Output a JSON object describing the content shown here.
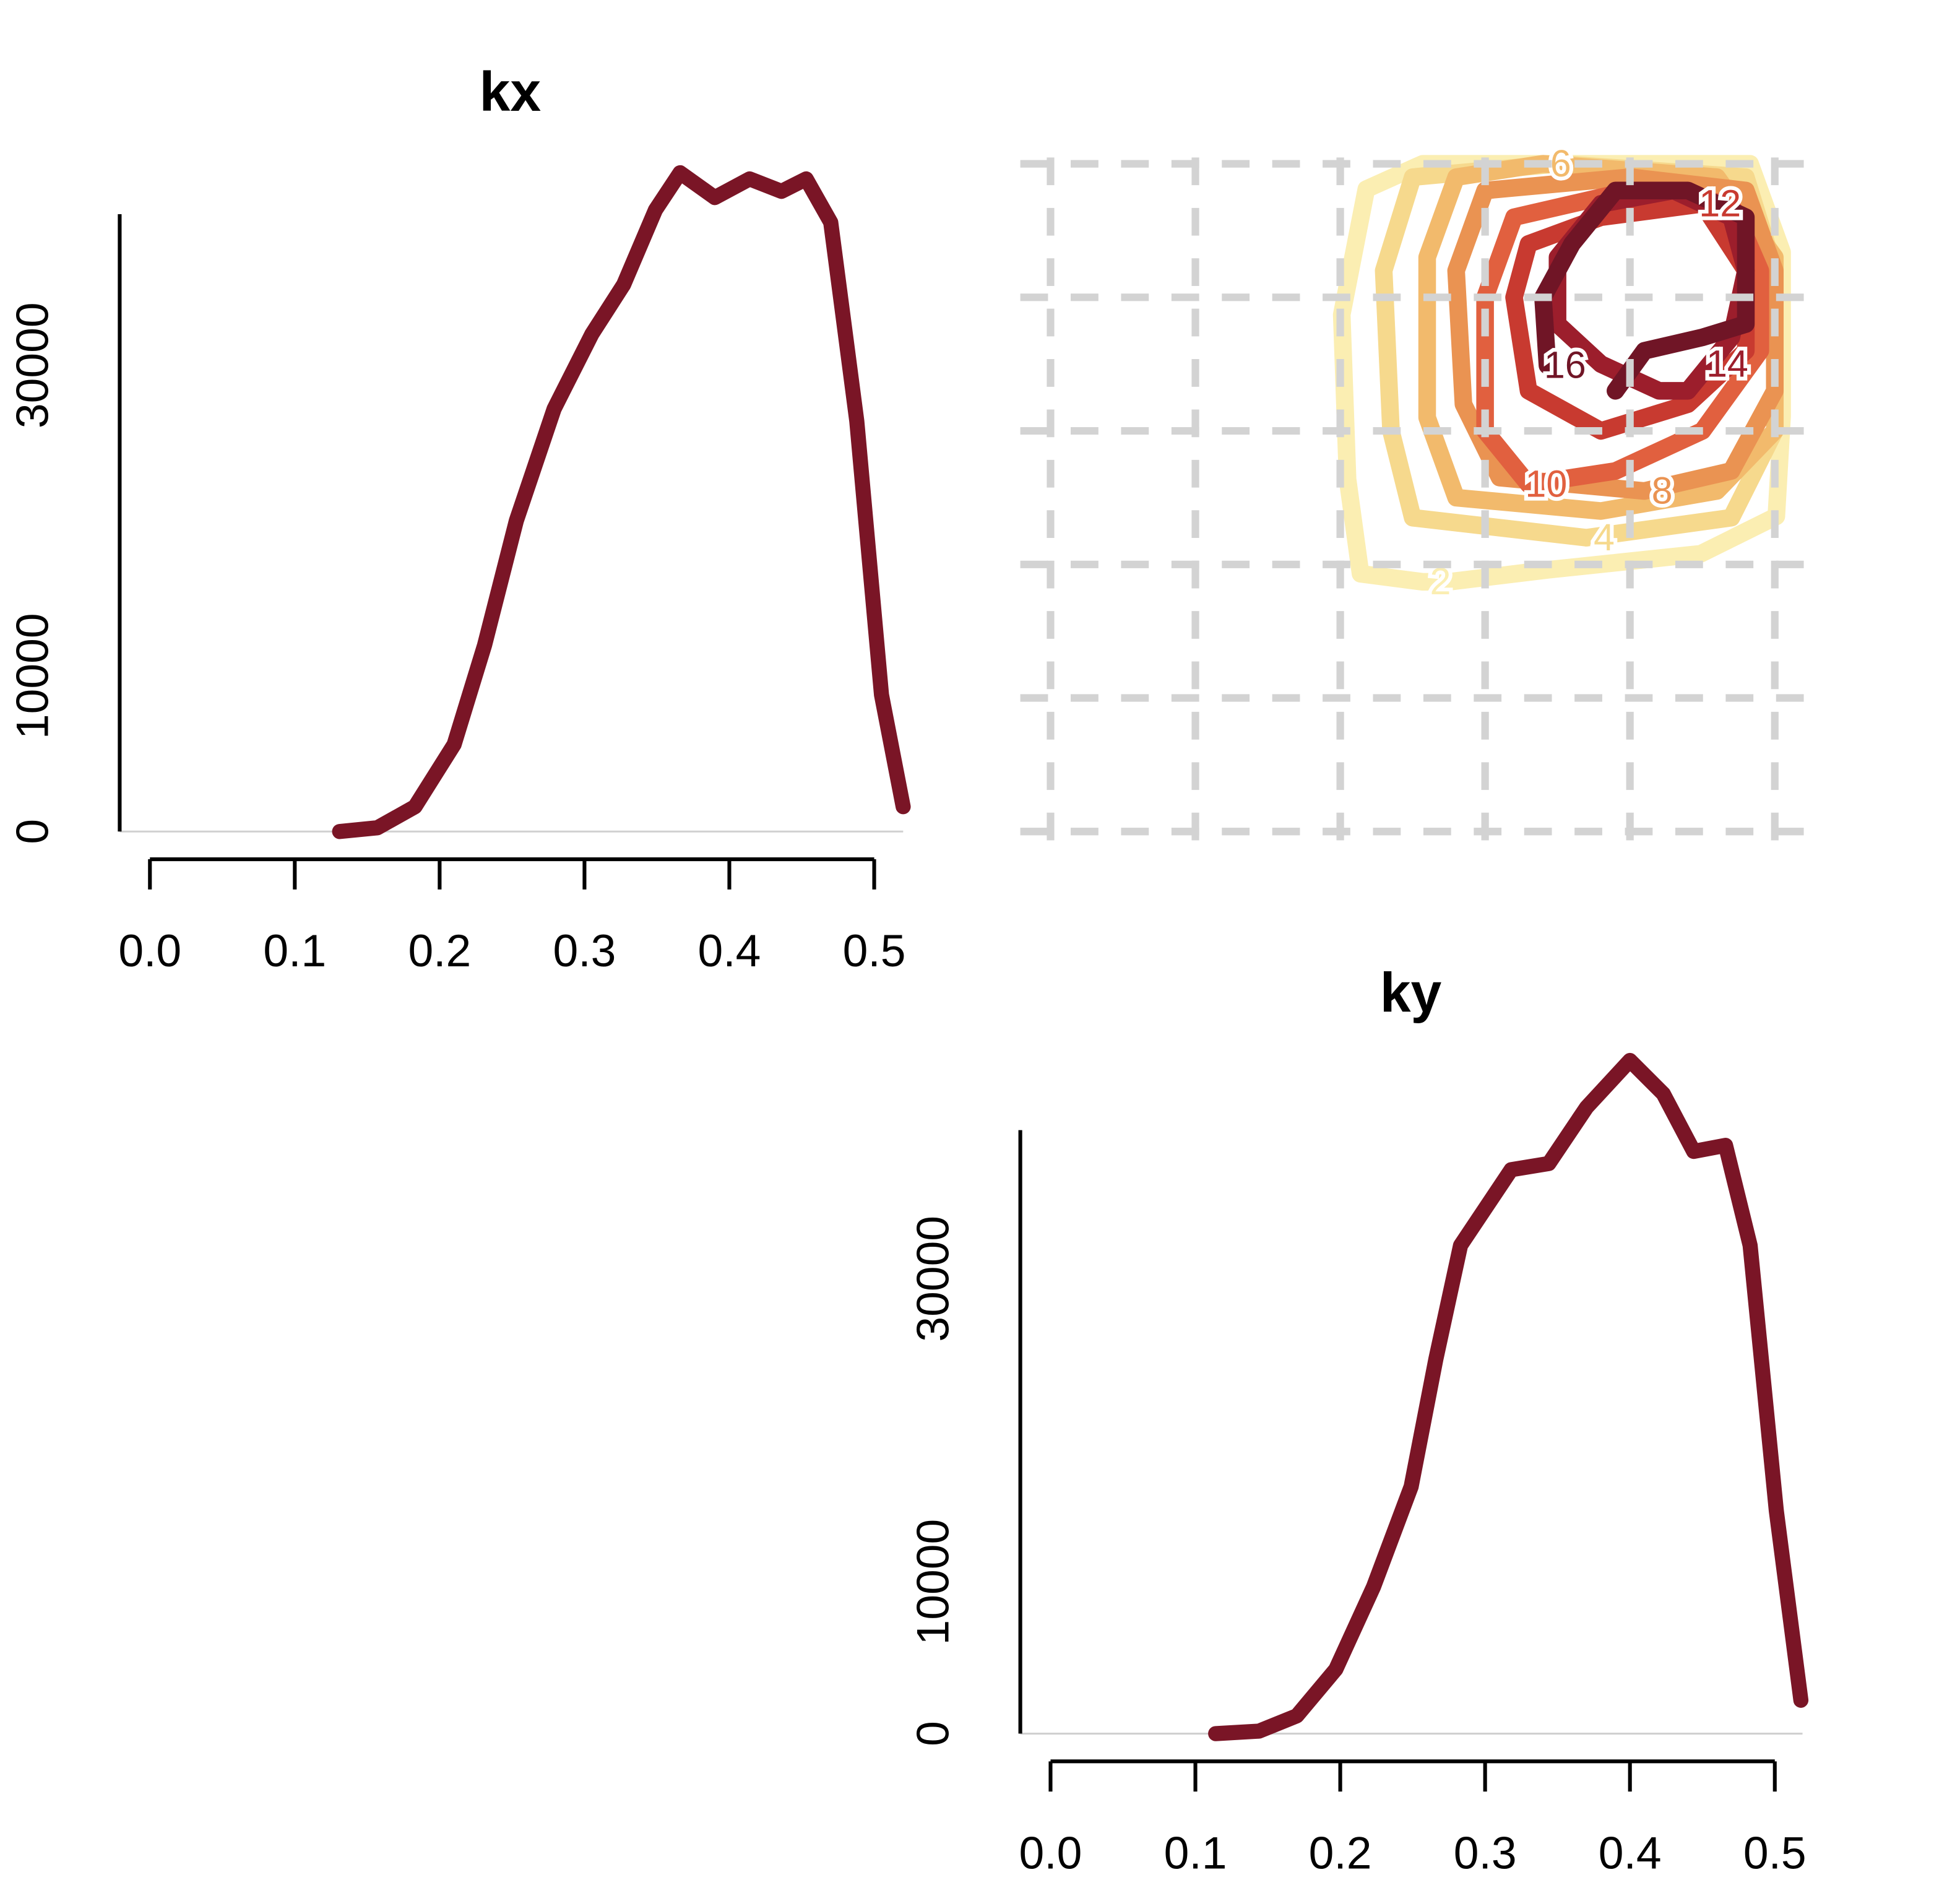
{
  "chart_data": [
    {
      "type": "line",
      "title": "kx",
      "color": "#7a1526",
      "x": [
        0.131,
        0.157,
        0.183,
        0.21,
        0.231,
        0.253,
        0.279,
        0.305,
        0.327,
        0.349,
        0.366,
        0.39,
        0.414,
        0.436,
        0.453,
        0.47,
        0.488,
        0.505,
        0.52
      ],
      "values": [
        0,
        240,
        1600,
        5600,
        12000,
        20000,
        27200,
        32000,
        35200,
        40000,
        42400,
        40800,
        42000,
        41200,
        42000,
        39200,
        26400,
        8800,
        1600
      ],
      "xlim": [
        -0.021,
        0.52
      ],
      "ylim": [
        0,
        42500
      ],
      "xticks": [
        {
          "value": 0,
          "label": "0.0"
        },
        0.1,
        0.2,
        0.3,
        0.4,
        0.5
      ],
      "yticks": [
        0,
        10000,
        30000
      ]
    },
    {
      "type": "contour",
      "xlim": [
        -0.02,
        0.52
      ],
      "ylim": [
        0,
        0.5
      ],
      "xticks": [
        0,
        0.1,
        0.2,
        0.3,
        0.4,
        0.5
      ],
      "yticks": [
        0,
        0.1,
        0.2,
        0.3,
        0.4,
        0.5
      ],
      "grid": true,
      "contours": [
        {
          "level": 2,
          "color": "#fbeeb2",
          "x": [
            0.257,
            0.214,
            0.205,
            0.201,
            0.218,
            0.257,
            0.362,
            0.483,
            0.505,
            0.505,
            0.501,
            0.449,
            0.344,
            0.275,
            0.257
          ],
          "y": [
            0.187,
            0.193,
            0.264,
            0.387,
            0.481,
            0.5,
            0.5,
            0.5,
            0.434,
            0.311,
            0.236,
            0.208,
            0.196,
            0.187,
            0.187
          ]
        },
        {
          "level": 4,
          "color": "#f6d98d",
          "x": [
            0.37,
            0.25,
            0.235,
            0.23,
            0.25,
            0.35,
            0.48,
            0.5,
            0.5,
            0.47,
            0.37
          ],
          "y": [
            0.22,
            0.235,
            0.3,
            0.42,
            0.49,
            0.5,
            0.49,
            0.42,
            0.3,
            0.235,
            0.22
          ]
        },
        {
          "level": 6,
          "color": "#f2ba6c",
          "x": [
            0.34,
            0.46,
            0.5,
            0.5,
            0.46,
            0.38,
            0.28,
            0.26,
            0.26,
            0.28,
            0.34
          ],
          "y": [
            0.5,
            0.49,
            0.43,
            0.3,
            0.255,
            0.24,
            0.25,
            0.31,
            0.43,
            0.49,
            0.5
          ]
        },
        {
          "level": 8,
          "color": "#ea9352",
          "x": [
            0.41,
            0.31,
            0.285,
            0.28,
            0.3,
            0.4,
            0.48,
            0.5,
            0.5,
            0.47,
            0.41
          ],
          "y": [
            0.255,
            0.265,
            0.32,
            0.42,
            0.48,
            0.49,
            0.48,
            0.42,
            0.33,
            0.27,
            0.255
          ]
        },
        {
          "level": 10,
          "color": "#e1603f",
          "x": [
            0.33,
            0.3,
            0.3,
            0.32,
            0.4,
            0.47,
            0.49,
            0.49,
            0.45,
            0.39,
            0.33
          ],
          "y": [
            0.26,
            0.3,
            0.4,
            0.46,
            0.48,
            0.47,
            0.42,
            0.36,
            0.3,
            0.27,
            0.26
          ]
        },
        {
          "level": 12,
          "color": "#c83a30",
          "x": [
            0.45,
            0.48,
            0.48,
            0.44,
            0.38,
            0.33,
            0.32,
            0.33,
            0.38,
            0.45
          ],
          "y": [
            0.47,
            0.42,
            0.36,
            0.32,
            0.3,
            0.33,
            0.4,
            0.44,
            0.46,
            0.47
          ]
        },
        {
          "level": 14,
          "color": "#9c1e2c",
          "x": [
            0.455,
            0.47,
            0.48,
            0.47,
            0.43,
            0.38,
            0.35,
            0.35,
            0.38,
            0.42,
            0.44,
            0.455
          ],
          "y": [
            0.35,
            0.37,
            0.42,
            0.46,
            0.48,
            0.47,
            0.43,
            0.38,
            0.35,
            0.33,
            0.33,
            0.35
          ]
        },
        {
          "level": 16,
          "color": "#701526",
          "x": [
            0.343,
            0.34,
            0.36,
            0.39,
            0.44,
            0.48,
            0.48,
            0.45,
            0.41,
            0.39
          ],
          "y": [
            0.349,
            0.4,
            0.44,
            0.48,
            0.48,
            0.46,
            0.38,
            0.37,
            0.36,
            0.33
          ]
        }
      ]
    },
    {
      "type": "line",
      "title": "ky",
      "color": "#7a1526",
      "x": [
        0.114,
        0.144,
        0.17,
        0.197,
        0.223,
        0.249,
        0.266,
        0.283,
        0.318,
        0.344,
        0.37,
        0.4,
        0.423,
        0.444,
        0.466,
        0.483,
        0.501,
        0.518
      ],
      "values": [
        0,
        170,
        1170,
        4250,
        9700,
        16300,
        24700,
        32200,
        37200,
        37600,
        41300,
        44400,
        42200,
        38400,
        38800,
        32200,
        14700,
        2200
      ],
      "xlim": [
        -0.02,
        0.52
      ],
      "ylim": [
        0,
        44400
      ],
      "xticks": [
        {
          "value": 0,
          "label": "0.0"
        },
        0.1,
        0.2,
        0.3,
        0.4,
        0.5
      ],
      "yticks": [
        0,
        10000,
        30000
      ]
    }
  ]
}
